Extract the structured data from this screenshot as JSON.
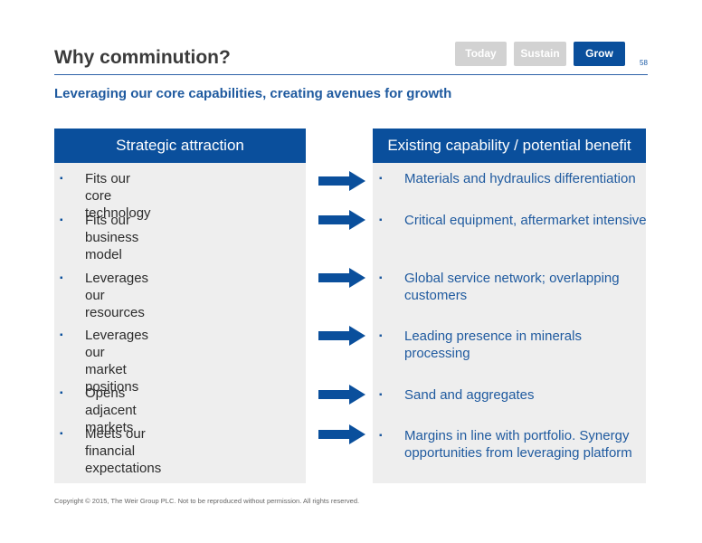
{
  "slide": {
    "title": "Why comminution?",
    "page_number": "58",
    "subtitle": "Leveraging our core capabilities, creating avenues for growth",
    "footer": "Copyright © 2015, The Weir Group PLC. Not to be reproduced without permission. All rights reserved."
  },
  "nav_pills": {
    "today": "Today",
    "sustain": "Sustain",
    "grow": "Grow",
    "active_color": "#0a4f9c",
    "inactive_color": "#d2d2d2"
  },
  "left_panel": {
    "heading": "Strategic attraction",
    "items": [
      "Fits our core technology",
      "Fits our business model",
      "Leverages our resources",
      "Leverages our market positions",
      "Opens adjacent markets",
      "Meets our financial expectations"
    ]
  },
  "right_panel": {
    "heading": "Existing capability / potential benefit",
    "items": [
      "Materials and hydraulics differentiation",
      "Critical equipment, aftermarket intensive",
      "Global service network; overlapping customers",
      "Leading presence in minerals processing",
      "Sand and aggregates",
      "Margins in line with portfolio. Synergy opportunities from leveraging platform"
    ]
  },
  "bullet_glyph": "▪",
  "colors": {
    "brand_blue": "#0a4f9c",
    "panel_bg": "#eeeeee"
  }
}
